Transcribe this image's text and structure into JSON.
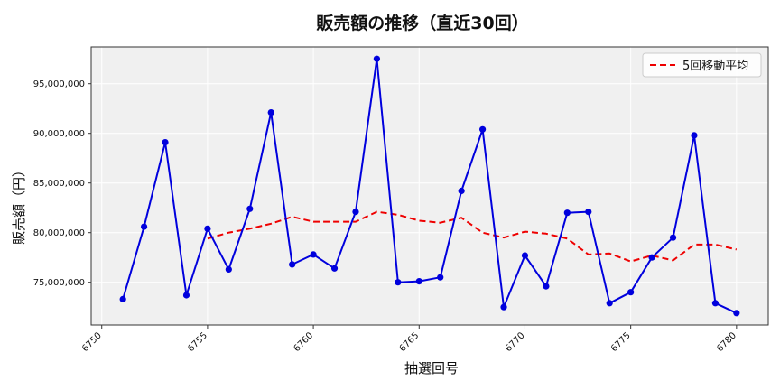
{
  "chart_data": {
    "type": "line",
    "title": "販売額の推移（直近30回）",
    "xlabel": "抽選回号",
    "ylabel": "販売額（円）",
    "x": [
      6751,
      6752,
      6753,
      6754,
      6755,
      6756,
      6757,
      6758,
      6759,
      6760,
      6761,
      6762,
      6763,
      6764,
      6765,
      6766,
      6767,
      6768,
      6769,
      6770,
      6771,
      6772,
      6773,
      6774,
      6775,
      6776,
      6777,
      6778,
      6779,
      6780
    ],
    "xlim": [
      6749.5,
      6781.5
    ],
    "ylim": [
      70700000,
      98700000
    ],
    "xticks": [
      6750,
      6755,
      6760,
      6765,
      6770,
      6775,
      6780
    ],
    "xtick_labels": [
      "6750",
      "6755",
      "6760",
      "6765",
      "6770",
      "6775",
      "6780"
    ],
    "yticks": [
      75000000,
      80000000,
      85000000,
      90000000,
      95000000
    ],
    "ytick_labels": [
      "75,000,000",
      "80,000,000",
      "85,000,000",
      "90,000,000",
      "95,000,000"
    ],
    "grid": true,
    "legend_position": "top-right",
    "series": [
      {
        "name": "",
        "style": "solid",
        "marker": "circle",
        "color": "#0000dd",
        "values": [
          73300000,
          80600000,
          89100000,
          73700000,
          80400000,
          76300000,
          82400000,
          92100000,
          76800000,
          77800000,
          76400000,
          82100000,
          97500000,
          75000000,
          75100000,
          75500000,
          84200000,
          90400000,
          72500000,
          77700000,
          74600000,
          82000000,
          82100000,
          72900000,
          74000000,
          77500000,
          79500000,
          89800000,
          72900000,
          71900000
        ]
      },
      {
        "name": "5回移動平均",
        "style": "dashed",
        "marker": "none",
        "color": "#ee0000",
        "values": [
          null,
          null,
          null,
          null,
          79400000,
          80000000,
          80400000,
          80900000,
          81600000,
          81100000,
          81100000,
          81100000,
          82100000,
          81800000,
          81200000,
          81000000,
          81500000,
          80000000,
          79500000,
          80100000,
          79900000,
          79400000,
          77800000,
          77900000,
          77100000,
          77700000,
          77200000,
          78800000,
          78800000,
          78300000
        ]
      }
    ]
  },
  "colors": {
    "plot_background": "#f0f0f0",
    "grid": "#ffffff"
  }
}
